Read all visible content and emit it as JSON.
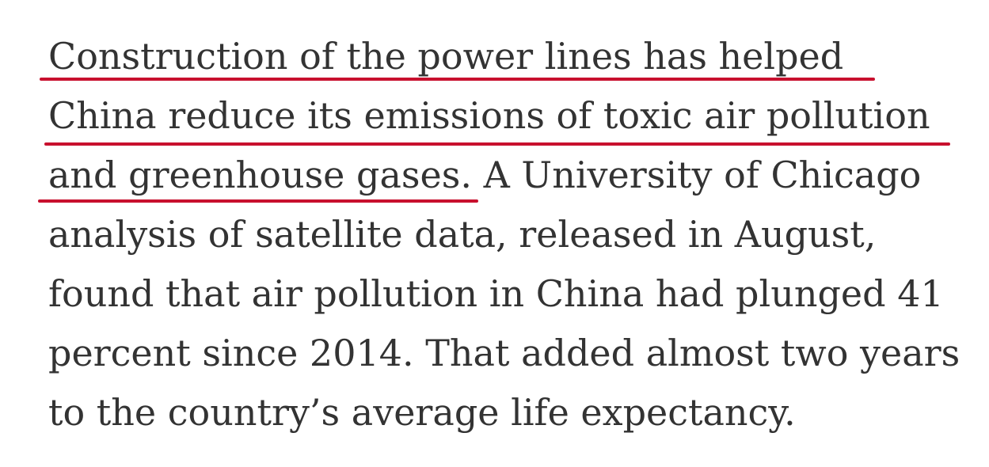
{
  "article": {
    "lines": [
      "Construction of the power lines has helped",
      "China reduce its emissions of toxic air pollution",
      "and greenhouse gases.",
      "A University of Chicago",
      "analysis of satellite data, released in August,",
      "found that air pollution in China had plunged 41",
      "percent since 2014. That added almost two years",
      "to the country’s average life expectancy."
    ]
  },
  "annotation": {
    "underline_color": "#c8102e"
  }
}
